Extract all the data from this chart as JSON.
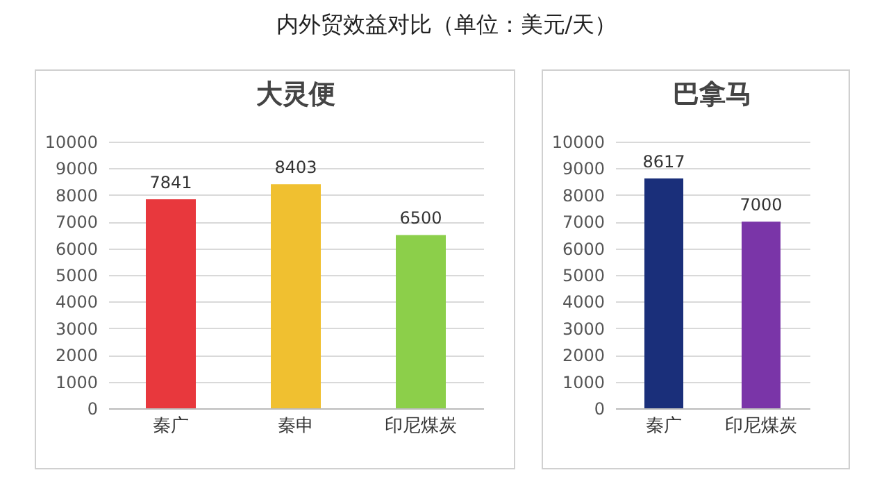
{
  "chart_data": [
    {
      "type": "other",
      "title": "内外贸效益对比（单位：美元/天）"
    },
    {
      "type": "bar",
      "title": "大灵便",
      "categories": [
        "秦广",
        "秦申",
        "印尼煤炭"
      ],
      "values": [
        7841,
        8403,
        6500
      ],
      "colors": [
        "#e8383d",
        "#f0c030",
        "#8ccf4a"
      ],
      "ylim": [
        0,
        10000
      ],
      "yticks": [
        0,
        1000,
        2000,
        3000,
        4000,
        5000,
        6000,
        7000,
        8000,
        9000,
        10000
      ],
      "grid": "y",
      "data_labels": true
    },
    {
      "type": "bar",
      "title": "巴拿马",
      "categories": [
        "秦广",
        "印尼煤炭"
      ],
      "values": [
        8617,
        7000
      ],
      "colors": [
        "#1a2f7a",
        "#7a35a8"
      ],
      "ylim": [
        0,
        10000
      ],
      "yticks": [
        0,
        1000,
        2000,
        3000,
        4000,
        5000,
        6000,
        7000,
        8000,
        9000,
        10000
      ],
      "grid": "y",
      "data_labels": true
    }
  ]
}
